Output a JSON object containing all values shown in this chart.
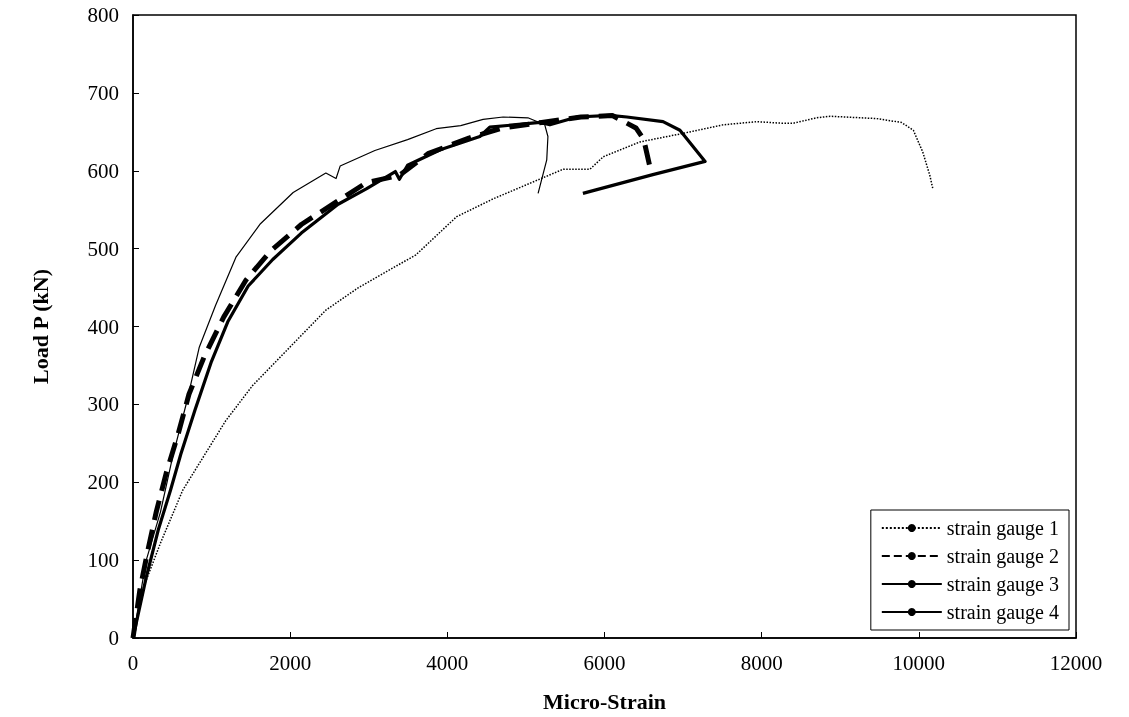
{
  "chart_data": {
    "type": "line",
    "xlabel": "Micro-Strain",
    "ylabel": "Load P (kN)",
    "xlim": [
      0,
      12000
    ],
    "xticks": [
      0,
      2000,
      4000,
      6000,
      8000,
      10000,
      12000
    ],
    "ylim": [
      0,
      800
    ],
    "yticks": [
      0,
      100,
      200,
      300,
      400,
      500,
      600,
      700,
      800
    ],
    "legend": "bottom right",
    "marker": "none",
    "series": [
      {
        "name": "strain gauge 1",
        "color": "#000000",
        "line_style": "dotted",
        "x": [
          0,
          114,
          350,
          634,
          1180,
          1520,
          1934,
          2454,
          2870,
          3600,
          4118,
          4585,
          5030,
          5475,
          5815,
          5985,
          6450,
          7000,
          7510,
          7935,
          8270,
          8400,
          8700,
          8870,
          9460,
          9780,
          9930,
          10050,
          10140,
          10180
        ],
        "values": [
          0,
          60,
          122,
          190,
          279,
          324,
          367,
          421,
          450,
          492,
          541,
          564,
          583,
          602,
          602,
          618,
          637,
          648,
          659,
          663,
          661,
          661,
          668,
          670,
          667,
          662,
          652,
          624,
          594,
          576
        ]
      },
      {
        "name": "strain gauge 2",
        "color": "#000000",
        "line_style": "dashed",
        "x": [
          0,
          88,
          192,
          296,
          426,
          572,
          712,
          905,
          1154,
          1440,
          1752,
          2142,
          2558,
          2974,
          3390,
          3754,
          4274,
          4700,
          5200,
          5700,
          6100,
          6400,
          6500,
          6600
        ],
        "values": [
          0,
          62,
          114,
          162,
          213,
          261,
          313,
          361,
          412,
          460,
          497,
          531,
          558,
          585,
          594,
          622,
          642,
          655,
          662,
          669,
          671,
          655,
          640,
          595
        ]
      },
      {
        "name": "strain gauge 3",
        "color": "#000000",
        "line_style": "solid",
        "x": [
          0,
          166,
          350,
          505,
          686,
          842,
          1050,
          1310,
          1622,
          2038,
          2454,
          2584,
          2636,
          3078,
          3494,
          3858,
          4170,
          4455,
          4710,
          5025,
          5240,
          5280,
          5265,
          5155
        ],
        "values": [
          0,
          99,
          162,
          233,
          304,
          373,
          427,
          489,
          532,
          572,
          597,
          590,
          606,
          626,
          640,
          654,
          658,
          666,
          669,
          668,
          659,
          644,
          614,
          571
        ]
      },
      {
        "name": "strain gauge 4",
        "color": "#000000",
        "line_style": "solid",
        "x": [
          0,
          166,
          322,
          478,
          608,
          790,
          998,
          1206,
          1466,
          1778,
          2142,
          2610,
          2974,
          3338,
          3390,
          3494,
          3910,
          4414,
          4540,
          5180,
          5305,
          5650,
          6070,
          6285,
          6745,
          6960,
          7280,
          6615,
          5725
        ],
        "values": [
          0,
          77,
          139,
          190,
          236,
          293,
          355,
          406,
          452,
          486,
          520,
          557,
          577,
          599,
          589,
          607,
          627,
          644,
          656,
          662,
          659,
          669,
          671,
          669,
          663,
          652,
          612,
          595,
          571
        ]
      }
    ]
  }
}
